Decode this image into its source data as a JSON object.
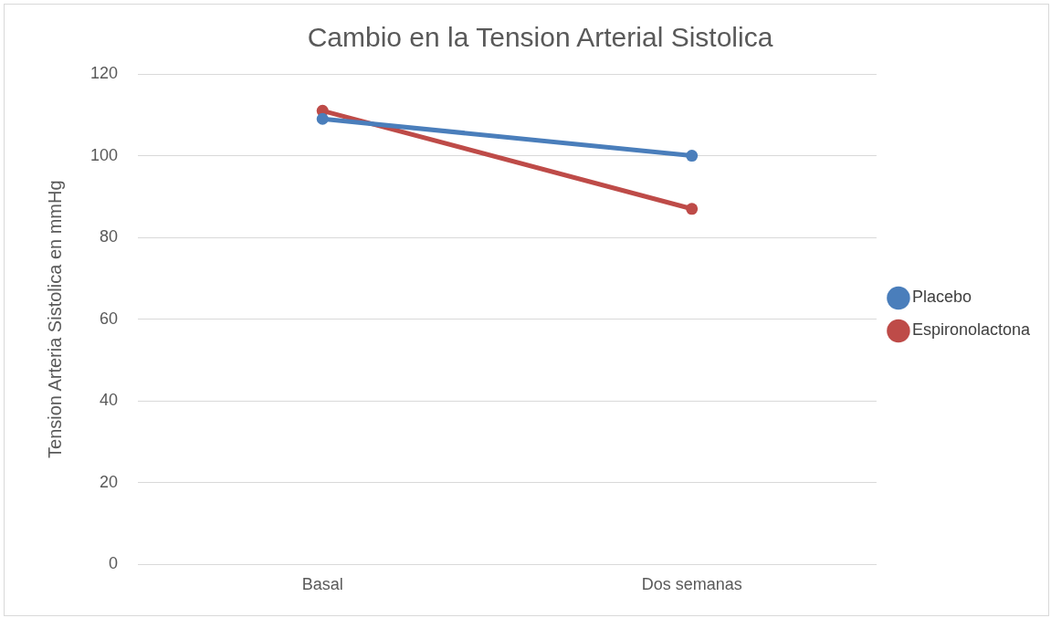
{
  "chart_data": {
    "type": "line",
    "title": "Cambio en la Tension Arterial Sistolica",
    "ylabel": "Tension Arteria Sistolica en mmHg",
    "categories": [
      "Basal",
      "Dos semanas"
    ],
    "series": [
      {
        "name": "Placebo",
        "color": "#4a7ebb",
        "values": [
          109,
          100
        ]
      },
      {
        "name": "Espironolactona",
        "color": "#be4b48",
        "values": [
          111,
          87
        ]
      }
    ],
    "ylim": [
      0,
      120
    ],
    "yticks": [
      0,
      20,
      40,
      60,
      80,
      100,
      120
    ],
    "grid": "y",
    "legend": "right",
    "marker": "circle",
    "line_style": "solid"
  }
}
